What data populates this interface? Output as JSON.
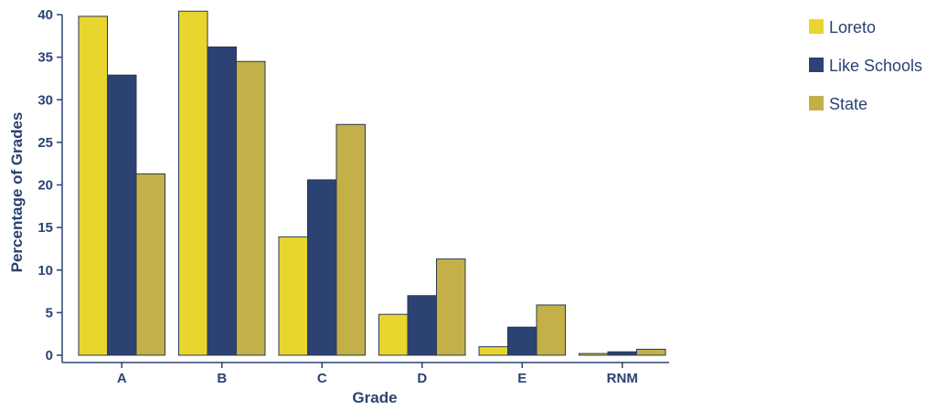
{
  "chart_data": {
    "type": "bar",
    "title": "",
    "xlabel": "Grade",
    "ylabel": "Percentage of Grades",
    "categories": [
      "A",
      "B",
      "C",
      "D",
      "E",
      "RNM"
    ],
    "ylim": [
      0,
      40
    ],
    "yticks": [
      0,
      5,
      10,
      15,
      20,
      25,
      30,
      35,
      40
    ],
    "grid": false,
    "legend_position": "top-right",
    "series": [
      {
        "name": "Loreto",
        "color": "#e8d52e",
        "values": [
          39.8,
          40.4,
          13.9,
          4.8,
          1.0,
          0.2
        ]
      },
      {
        "name": "Like Schools",
        "color": "#2b4272",
        "values": [
          32.9,
          36.2,
          20.6,
          7.0,
          3.3,
          0.4
        ]
      },
      {
        "name": "State",
        "color": "#c3b048",
        "values": [
          21.3,
          34.5,
          27.1,
          11.3,
          5.9,
          0.7
        ]
      }
    ]
  }
}
